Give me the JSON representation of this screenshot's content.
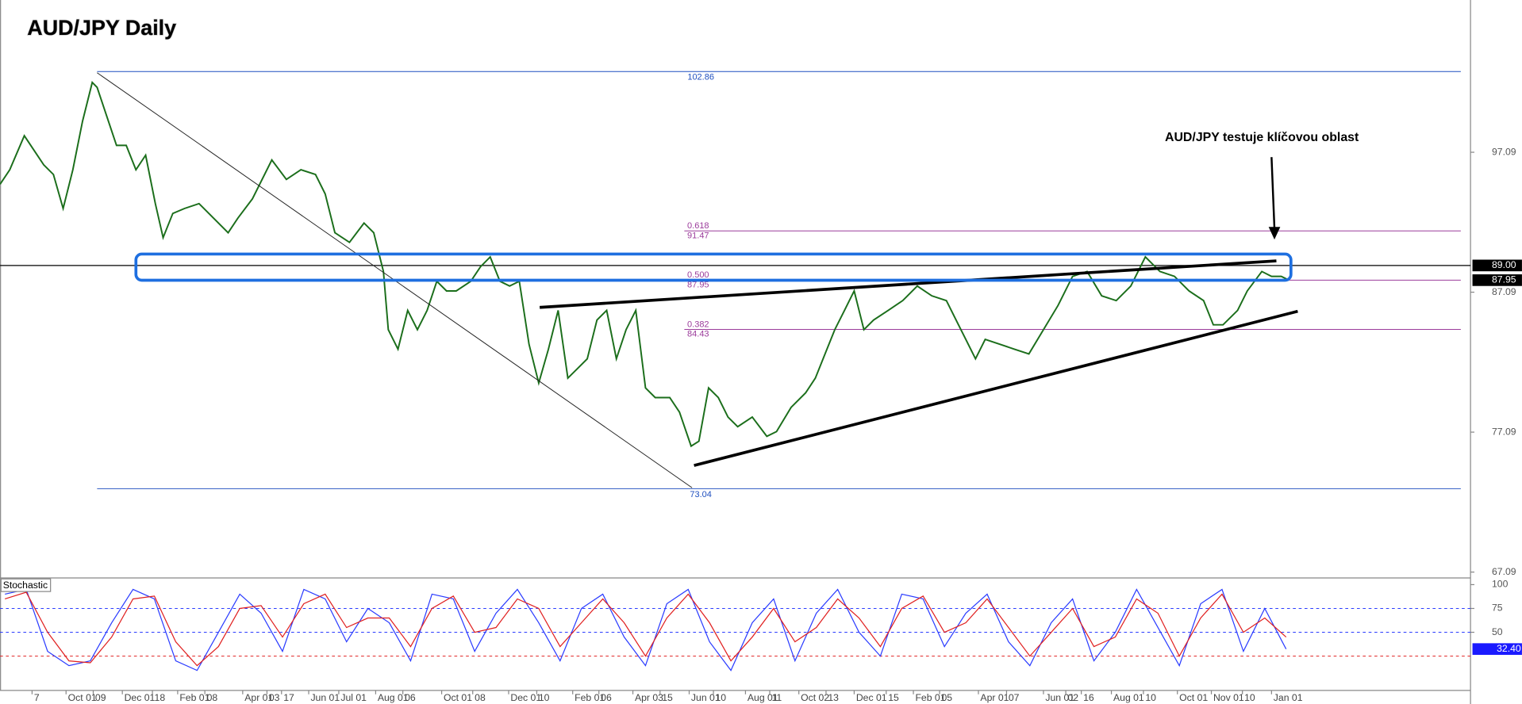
{
  "chart_data": [
    {
      "type": "line",
      "title": "AUD/JPY Daily",
      "annotation": "AUD/JPY testuje klíčovou oblast",
      "x": [
        0,
        10,
        25,
        35,
        45,
        55,
        65,
        75,
        85,
        95,
        100,
        110,
        120,
        130,
        140,
        150,
        160,
        168,
        178,
        190,
        205,
        220,
        235,
        245,
        260,
        270,
        280,
        295,
        310,
        325,
        335,
        345,
        360,
        375,
        385,
        395,
        400,
        410,
        420,
        430,
        440,
        450,
        460,
        470,
        485,
        495,
        505,
        515,
        525,
        535,
        545,
        555,
        565,
        575,
        585,
        595,
        605,
        615,
        625,
        635,
        645,
        655,
        665,
        675,
        690,
        700,
        712,
        720,
        730,
        740,
        750,
        760,
        775,
        790,
        800,
        815,
        830,
        840,
        850,
        860,
        870,
        880,
        890,
        900,
        915,
        930,
        945,
        960,
        975,
        985,
        995,
        1005,
        1015,
        1030,
        1045,
        1060,
        1075,
        1090,
        1105,
        1120,
        1135,
        1150,
        1165,
        1180,
        1195,
        1210,
        1225,
        1240,
        1250,
        1260,
        1275,
        1285,
        1300,
        1310,
        1320,
        1328
      ],
      "series": [
        {
          "color": "#1b6e1b",
          "values": [
            94.8,
            95.84,
            98.27,
            97.23,
            96.19,
            95.5,
            93.07,
            95.84,
            99.31,
            102.08,
            101.73,
            99.65,
            97.58,
            97.58,
            95.84,
            96.88,
            93.42,
            90.99,
            92.72,
            93.07,
            93.42,
            92.38,
            91.34,
            92.38,
            93.76,
            95.15,
            96.54,
            95.15,
            95.84,
            95.5,
            94.11,
            91.34,
            90.65,
            92.03,
            91.34,
            88.57,
            84.41,
            83.02,
            85.79,
            84.41,
            85.79,
            87.87,
            87.18,
            87.18,
            87.87,
            88.91,
            89.61,
            87.87,
            87.53,
            87.87,
            83.37,
            80.6,
            83.02,
            85.79,
            80.95,
            81.64,
            82.33,
            85.1,
            85.79,
            82.33,
            84.41,
            85.79,
            80.25,
            79.56,
            79.56,
            78.52,
            76.09,
            76.44,
            80.25,
            79.56,
            78.17,
            77.48,
            78.17,
            76.79,
            77.13,
            78.86,
            79.9,
            80.95,
            82.68,
            84.41,
            85.79,
            87.18,
            84.41,
            85.1,
            85.79,
            86.49,
            87.53,
            86.83,
            86.49,
            85.1,
            83.72,
            82.33,
            83.72,
            83.37,
            83.02,
            82.68,
            84.41,
            86.14,
            88.22,
            88.57,
            86.83,
            86.49,
            87.53,
            89.61,
            88.57,
            88.22,
            87.18,
            86.49,
            84.76,
            84.76,
            85.79,
            87.18,
            88.57,
            88.22,
            88.22,
            87.95
          ]
        }
      ],
      "xlim": [
        0,
        1515
      ],
      "ylim": [
        66.74,
        107.97
      ],
      "yticks": [
        97.09,
        87.09,
        77.09,
        67.09
      ],
      "fib_range": [
        102.86,
        73.04
      ],
      "fib_levels": [
        {
          "ratio": 0.618,
          "value": 91.47
        },
        {
          "ratio": {
            "value": 0.5,
            "label": "0.500"
          },
          "value": 87.95
        },
        {
          "ratio": 0.382,
          "value": 84.43
        }
      ],
      "price_badges": [
        {
          "value": 89,
          "label": "89.00"
        },
        {
          "value": 87.95,
          "label": "87.95"
        }
      ]
    },
    {
      "type": "line",
      "title": "Stochastic",
      "x": [
        5,
        27,
        49,
        71,
        93,
        115,
        137,
        159,
        181,
        203,
        225,
        247,
        269,
        291,
        313,
        335,
        357,
        379,
        401,
        423,
        445,
        467,
        489,
        511,
        533,
        555,
        577,
        599,
        621,
        643,
        665,
        687,
        709,
        731,
        753,
        775,
        797,
        819,
        841,
        863,
        885,
        907,
        929,
        951,
        973,
        995,
        1017,
        1039,
        1061,
        1083,
        1105,
        1127,
        1149,
        1171,
        1193,
        1215,
        1237,
        1259,
        1281,
        1303,
        1325
      ],
      "series": [
        {
          "color": "#2b3cff",
          "values": [
            90,
            95,
            30,
            15,
            20,
            60,
            95,
            85,
            20,
            10,
            50,
            90,
            70,
            30,
            95,
            85,
            40,
            75,
            60,
            20,
            90,
            85,
            30,
            70,
            95,
            60,
            20,
            75,
            90,
            45,
            15,
            80,
            95,
            40,
            10,
            60,
            85,
            20,
            70,
            95,
            50,
            25,
            90,
            85,
            35,
            70,
            90,
            40,
            15,
            60,
            85,
            20,
            50,
            95,
            55,
            15,
            80,
            95,
            30,
            75,
            32.4
          ]
        },
        {
          "color": "#e02020",
          "values": [
            85,
            92,
            50,
            20,
            18,
            45,
            85,
            88,
            40,
            15,
            35,
            75,
            78,
            45,
            80,
            90,
            55,
            65,
            65,
            35,
            75,
            88,
            50,
            55,
            85,
            75,
            35,
            60,
            85,
            60,
            25,
            65,
            90,
            60,
            20,
            45,
            75,
            40,
            55,
            85,
            65,
            35,
            75,
            88,
            50,
            60,
            85,
            55,
            25,
            50,
            75,
            35,
            45,
            85,
            70,
            25,
            65,
            90,
            50,
            65,
            45
          ]
        }
      ],
      "xlim": [
        0,
        1515
      ],
      "ylim": [
        -11,
        106
      ],
      "yticks": [
        100,
        75,
        50
      ],
      "levels": [
        {
          "value": 75,
          "color": "#2b3cff"
        },
        {
          "value": 50,
          "color": "#2b3cff"
        },
        {
          "value": 25,
          "color": "#e02020"
        }
      ],
      "value_badge": {
        "value": 32.4,
        "label": "32.40"
      },
      "xticks": [
        {
          "value": 33,
          "label": "7"
        },
        {
          "value": 68,
          "label": "Oct 01"
        },
        {
          "value": 96,
          "label": "09"
        },
        {
          "value": 126,
          "label": "Dec 01"
        },
        {
          "value": 157,
          "label": "18"
        },
        {
          "value": 183,
          "label": "Feb 01"
        },
        {
          "value": 211,
          "label": "08"
        },
        {
          "value": 250,
          "label": "Apr 01"
        },
        {
          "value": 275,
          "label": "03"
        },
        {
          "value": 290,
          "label": "17"
        },
        {
          "value": 318,
          "label": "Jun 01"
        },
        {
          "value": 349,
          "label": "Jul 01"
        },
        {
          "value": 387,
          "label": "Aug 01"
        },
        {
          "value": 415,
          "label": "06"
        },
        {
          "value": 455,
          "label": "Oct 01"
        },
        {
          "value": 487,
          "label": "08"
        },
        {
          "value": 524,
          "label": "Dec 01"
        },
        {
          "value": 553,
          "label": "10"
        },
        {
          "value": 590,
          "label": "Feb 01"
        },
        {
          "value": 617,
          "label": "06"
        },
        {
          "value": 652,
          "label": "Apr 03"
        },
        {
          "value": 680,
          "label": "15"
        },
        {
          "value": 710,
          "label": "Jun 01"
        },
        {
          "value": 735,
          "label": "10"
        },
        {
          "value": 768,
          "label": "Aug 01"
        },
        {
          "value": 793,
          "label": "11"
        },
        {
          "value": 823,
          "label": "Oct 02"
        },
        {
          "value": 851,
          "label": "13"
        },
        {
          "value": 880,
          "label": "Dec 01"
        },
        {
          "value": 913,
          "label": "15"
        },
        {
          "value": 941,
          "label": "Feb 01"
        },
        {
          "value": 968,
          "label": "05"
        },
        {
          "value": 1008,
          "label": "Apr 01"
        },
        {
          "value": 1037,
          "label": "07"
        },
        {
          "value": 1075,
          "label": "Jun 01"
        },
        {
          "value": 1098,
          "label": "02"
        },
        {
          "value": 1114,
          "label": "16"
        },
        {
          "value": 1145,
          "label": "Aug 01"
        },
        {
          "value": 1178,
          "label": "10"
        },
        {
          "value": 1213,
          "label": "Oct 01"
        },
        {
          "value": 1248,
          "label": "Nov 01"
        },
        {
          "value": 1280,
          "label": "10"
        },
        {
          "value": 1310,
          "label": "Jan 01"
        }
      ]
    }
  ]
}
